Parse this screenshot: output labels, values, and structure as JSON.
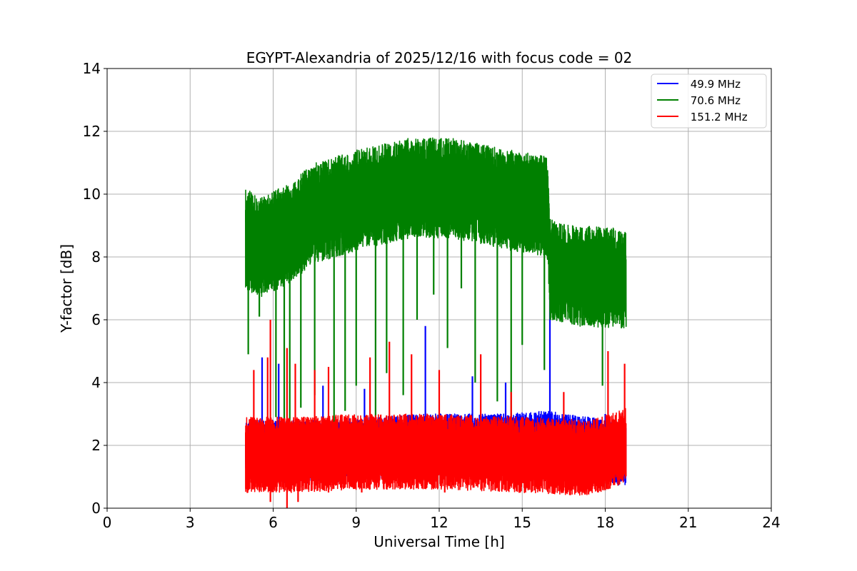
{
  "chart_data": {
    "type": "line",
    "title": "EGYPT-Alexandria of 2025/12/16 with focus code = 02",
    "xlabel": "Universal Time [h]",
    "ylabel": "Y-factor [dB]",
    "xlim": [
      0,
      24
    ],
    "ylim": [
      0,
      14
    ],
    "xticks": [
      "0",
      "3",
      "6",
      "9",
      "12",
      "15",
      "18",
      "21",
      "24"
    ],
    "yticks": [
      "0",
      "2",
      "4",
      "6",
      "8",
      "10",
      "12",
      "14"
    ],
    "xtick_values": [
      0,
      3,
      6,
      9,
      12,
      15,
      18,
      21,
      24
    ],
    "ytick_values": [
      0,
      2,
      4,
      6,
      8,
      10,
      12,
      14
    ],
    "grid": true,
    "legend_position": "top-right",
    "time_range": [
      5.0,
      18.75
    ],
    "series": [
      {
        "name": " 49.9 MHz",
        "color": "#0000ff",
        "baseline": [
          [
            5.0,
            1.8
          ],
          [
            8.0,
            1.8
          ],
          [
            11.0,
            2.0
          ],
          [
            14.0,
            2.0
          ],
          [
            16.0,
            2.1
          ],
          [
            18.75,
            1.7
          ]
        ],
        "band": 1.0,
        "spikes": [
          [
            5.6,
            4.8
          ],
          [
            6.2,
            4.6
          ],
          [
            7.8,
            3.9
          ],
          [
            9.3,
            3.8
          ],
          [
            11.5,
            5.8
          ],
          [
            13.2,
            4.2
          ],
          [
            14.4,
            4.0
          ],
          [
            16.0,
            6.8
          ],
          [
            18.0,
            3.0
          ]
        ]
      },
      {
        "name": " 70.6 MHz",
        "color": "#008000",
        "baseline": [
          [
            5.0,
            8.6
          ],
          [
            5.5,
            8.3
          ],
          [
            6.5,
            8.7
          ],
          [
            7.5,
            9.4
          ],
          [
            9.0,
            9.8
          ],
          [
            11.0,
            10.2
          ],
          [
            12.5,
            10.2
          ],
          [
            14.0,
            9.9
          ],
          [
            15.9,
            9.6
          ],
          [
            16.0,
            7.6
          ],
          [
            17.0,
            7.4
          ],
          [
            18.75,
            7.3
          ]
        ],
        "band": 1.6,
        "dips": [
          [
            5.1,
            4.9
          ],
          [
            5.5,
            6.1
          ],
          [
            6.1,
            2.9
          ],
          [
            6.4,
            1.6
          ],
          [
            6.6,
            1.2
          ],
          [
            7.0,
            3.2
          ],
          [
            7.5,
            3.6
          ],
          [
            8.2,
            1.5
          ],
          [
            8.6,
            3.1
          ],
          [
            9.0,
            3.9
          ],
          [
            9.7,
            2.9
          ],
          [
            10.1,
            4.3
          ],
          [
            10.7,
            3.6
          ],
          [
            11.2,
            6.0
          ],
          [
            11.8,
            6.8
          ],
          [
            12.3,
            5.1
          ],
          [
            12.8,
            7.0
          ],
          [
            13.3,
            4.0
          ],
          [
            14.1,
            3.4
          ],
          [
            14.6,
            2.9
          ],
          [
            15.0,
            5.2
          ],
          [
            15.8,
            4.4
          ],
          [
            16.7,
            6.4
          ],
          [
            17.9,
            3.9
          ],
          [
            18.4,
            6.6
          ]
        ]
      },
      {
        "name": " 151.2 MHz",
        "color": "#ff0000",
        "baseline": [
          [
            5.0,
            1.7
          ],
          [
            7.0,
            1.7
          ],
          [
            9.0,
            1.8
          ],
          [
            12.0,
            1.8
          ],
          [
            15.0,
            1.7
          ],
          [
            17.5,
            1.6
          ],
          [
            18.75,
            2.0
          ]
        ],
        "band": 1.2,
        "spikes": [
          [
            5.3,
            4.4
          ],
          [
            5.8,
            4.8
          ],
          [
            5.9,
            6.0
          ],
          [
            6.5,
            5.1
          ],
          [
            6.8,
            4.6
          ],
          [
            7.5,
            4.4
          ],
          [
            8.0,
            4.5
          ],
          [
            9.5,
            4.8
          ],
          [
            10.2,
            5.3
          ],
          [
            11.0,
            4.9
          ],
          [
            12.0,
            4.4
          ],
          [
            13.5,
            4.9
          ],
          [
            14.6,
            3.7
          ],
          [
            16.5,
            3.7
          ],
          [
            18.1,
            5.0
          ],
          [
            18.7,
            4.6
          ]
        ],
        "dips": [
          [
            5.9,
            0.2
          ],
          [
            6.5,
            0.0
          ],
          [
            6.9,
            0.2
          ],
          [
            8.0,
            0.5
          ],
          [
            9.2,
            0.5
          ],
          [
            10.0,
            0.6
          ],
          [
            12.2,
            0.5
          ],
          [
            15.0,
            0.8
          ]
        ]
      }
    ]
  }
}
